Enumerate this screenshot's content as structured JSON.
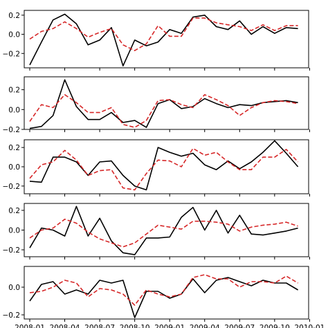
{
  "chart_data": {
    "type": "line",
    "x": [
      "2008-01",
      "2008-02",
      "2008-03",
      "2008-04",
      "2008-05",
      "2008-06",
      "2008-07",
      "2008-08",
      "2008-09",
      "2008-10",
      "2008-11",
      "2008-12",
      "2009-01",
      "2009-02",
      "2009-03",
      "2009-04",
      "2009-05",
      "2009-06",
      "2009-07",
      "2009-08",
      "2009-09",
      "2009-10",
      "2009-11",
      "2009-12"
    ],
    "x_tick_labels": [
      "2008-01",
      "2008-04",
      "2008-07",
      "2008-10",
      "2009-01",
      "2009-04",
      "2009-07",
      "2009-10",
      "2010-01"
    ],
    "colors": {
      "series_1": "#000000",
      "series_2": "#d62728"
    },
    "panels": [
      {
        "ylim": [
          -0.35,
          0.25
        ],
        "yticks": [
          -0.2,
          0.0,
          0.2
        ],
        "ytick_labels": [
          "−0.2",
          "0.0",
          "0.2"
        ],
        "series": [
          {
            "style": "solid",
            "color": "#000000",
            "values": [
              -0.32,
              -0.08,
              0.15,
              0.21,
              0.11,
              -0.11,
              -0.06,
              0.07,
              -0.33,
              -0.06,
              -0.12,
              -0.08,
              0.05,
              0.01,
              0.18,
              0.2,
              0.08,
              0.05,
              0.14,
              0.0,
              0.08,
              0.01,
              0.07,
              0.06
            ]
          },
          {
            "style": "dashed",
            "color": "#d62728",
            "values": [
              -0.05,
              0.03,
              0.06,
              0.13,
              0.06,
              -0.03,
              0.02,
              0.06,
              -0.11,
              -0.17,
              -0.1,
              0.09,
              -0.02,
              -0.02,
              0.17,
              0.17,
              0.12,
              0.1,
              0.08,
              0.04,
              0.1,
              0.04,
              0.09,
              0.09
            ]
          }
        ]
      },
      {
        "ylim": [
          -0.2,
          0.33
        ],
        "yticks": [
          -0.2,
          0.0,
          0.2
        ],
        "ytick_labels": [
          "−0.2",
          "0.0",
          "0.2"
        ],
        "series": [
          {
            "style": "solid",
            "color": "#000000",
            "values": [
              -0.19,
              -0.17,
              -0.06,
              0.3,
              0.03,
              -0.1,
              -0.1,
              -0.03,
              -0.13,
              -0.11,
              -0.18,
              0.06,
              0.1,
              0.01,
              0.03,
              0.11,
              0.06,
              0.02,
              0.05,
              0.04,
              0.07,
              0.08,
              0.09,
              0.07
            ]
          },
          {
            "style": "dashed",
            "color": "#d62728",
            "values": [
              -0.12,
              0.05,
              0.02,
              0.15,
              0.07,
              -0.03,
              -0.03,
              0.02,
              -0.15,
              -0.18,
              -0.11,
              0.09,
              0.1,
              0.05,
              0.02,
              0.15,
              0.1,
              0.04,
              -0.06,
              0.02,
              0.07,
              0.09,
              0.08,
              0.06
            ]
          }
        ]
      },
      {
        "ylim": [
          -0.28,
          0.28
        ],
        "yticks": [
          -0.2,
          0.0,
          0.2
        ],
        "ytick_labels": [
          "−0.2",
          "0.0",
          "0.2"
        ],
        "series": [
          {
            "style": "solid",
            "color": "#000000",
            "values": [
              -0.15,
              -0.16,
              0.1,
              0.1,
              0.05,
              -0.09,
              0.05,
              0.06,
              -0.09,
              -0.2,
              -0.24,
              0.2,
              0.15,
              0.11,
              0.14,
              0.02,
              -0.03,
              0.06,
              -0.02,
              0.05,
              0.15,
              0.27,
              0.14,
              0.0
            ]
          },
          {
            "style": "dashed",
            "color": "#d62728",
            "values": [
              -0.12,
              0.02,
              0.05,
              0.17,
              0.07,
              -0.09,
              -0.04,
              -0.03,
              -0.22,
              -0.24,
              -0.07,
              0.07,
              0.06,
              0.0,
              0.19,
              0.12,
              0.15,
              0.05,
              -0.03,
              -0.03,
              0.1,
              0.1,
              0.18,
              0.05
            ]
          }
        ]
      },
      {
        "ylim": [
          -0.27,
          0.27
        ],
        "yticks": [
          -0.2,
          0.0,
          0.2
        ],
        "ytick_labels": [
          "−0.2",
          "0.0",
          "0.2"
        ],
        "series": [
          {
            "style": "solid",
            "color": "#000000",
            "values": [
              -0.18,
              0.02,
              0.0,
              -0.06,
              0.24,
              -0.06,
              0.12,
              -0.11,
              -0.23,
              -0.25,
              -0.08,
              -0.08,
              -0.07,
              0.13,
              0.23,
              0.0,
              0.2,
              -0.03,
              0.15,
              -0.04,
              -0.05,
              -0.03,
              -0.01,
              0.02
            ]
          },
          {
            "style": "dashed",
            "color": "#d62728",
            "values": [
              -0.08,
              0.0,
              0.02,
              0.11,
              0.07,
              -0.02,
              -0.09,
              -0.13,
              -0.17,
              -0.13,
              -0.04,
              0.05,
              0.03,
              0.01,
              0.09,
              0.09,
              0.08,
              0.06,
              -0.01,
              0.03,
              0.05,
              0.06,
              0.08,
              0.04
            ]
          }
        ]
      },
      {
        "ylim": [
          -0.23,
          0.15
        ],
        "yticks": [
          -0.2,
          0.0
        ],
        "ytick_labels": [
          "−0.2",
          "0.0"
        ],
        "series": [
          {
            "style": "solid",
            "color": "#000000",
            "values": [
              -0.1,
              0.02,
              0.04,
              -0.05,
              -0.02,
              -0.05,
              0.05,
              0.03,
              0.05,
              -0.22,
              -0.03,
              -0.03,
              -0.08,
              -0.05,
              0.06,
              -0.04,
              0.05,
              0.07,
              0.04,
              0.01,
              0.05,
              0.03,
              0.03,
              -0.02
            ]
          },
          {
            "style": "dashed",
            "color": "#d62728",
            "values": [
              -0.04,
              -0.03,
              0.0,
              0.05,
              0.03,
              -0.07,
              -0.01,
              -0.02,
              -0.05,
              -0.13,
              -0.02,
              -0.05,
              -0.07,
              -0.05,
              0.07,
              0.09,
              0.06,
              0.06,
              0.0,
              0.04,
              0.04,
              0.03,
              0.08,
              0.03
            ]
          }
        ]
      }
    ]
  }
}
